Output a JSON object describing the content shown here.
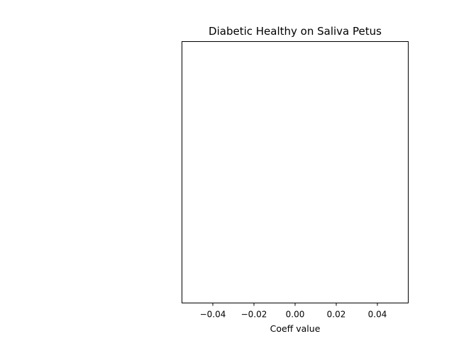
{
  "chart_data": {
    "type": "bar",
    "orientation": "horizontal",
    "title": "Diabetic Healthy on Saliva Petus",
    "xlabel": "Coeff value",
    "ylabel": "",
    "categories": [],
    "values": [],
    "xlim": [
      -0.055,
      0.055
    ],
    "xticks": [
      -0.04,
      -0.02,
      0.0,
      0.02,
      0.04
    ],
    "xtick_labels": [
      "−0.04",
      "−0.02",
      "0.00",
      "0.02",
      "0.04"
    ],
    "grid": false
  }
}
